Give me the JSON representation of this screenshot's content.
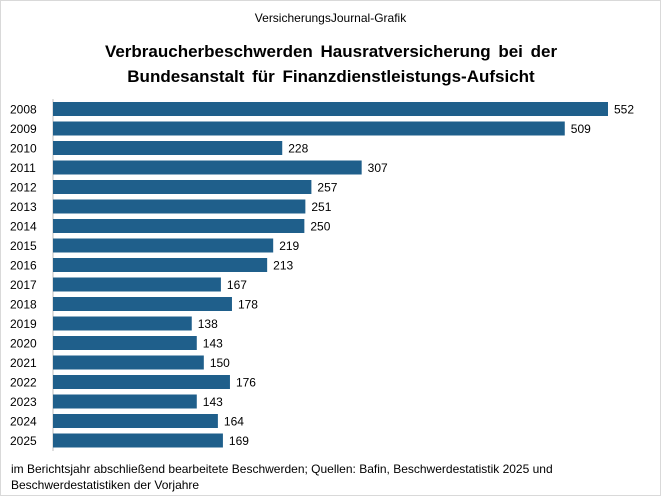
{
  "header": {
    "source_line": "VersicherungsJournal-Grafik"
  },
  "chart_data": {
    "type": "bar",
    "orientation": "horizontal",
    "title_lines": [
      "Verbraucherbeschwerden Hausratversicherung bei der",
      "Bundesanstalt für Finanzdienstleistungs-Aufsicht"
    ],
    "categories": [
      "2008",
      "2009",
      "2010",
      "2011",
      "2012",
      "2013",
      "2014",
      "2015",
      "2016",
      "2017",
      "2018",
      "2019",
      "2020",
      "2021",
      "2022",
      "2023",
      "2024",
      "2025"
    ],
    "values": [
      552,
      509,
      228,
      307,
      257,
      251,
      250,
      219,
      213,
      167,
      178,
      138,
      143,
      150,
      176,
      143,
      164,
      169
    ],
    "xlim": [
      0,
      552
    ],
    "grid": false,
    "bar_color": "#1f5f8b",
    "data_labels": true
  },
  "footer": {
    "note": "im Berichtsjahr abschließend bearbeitete Beschwerden; Quellen: Bafin, Beschwerdestatistik 2025 und Beschwerdestatistiken der Vorjahre"
  }
}
